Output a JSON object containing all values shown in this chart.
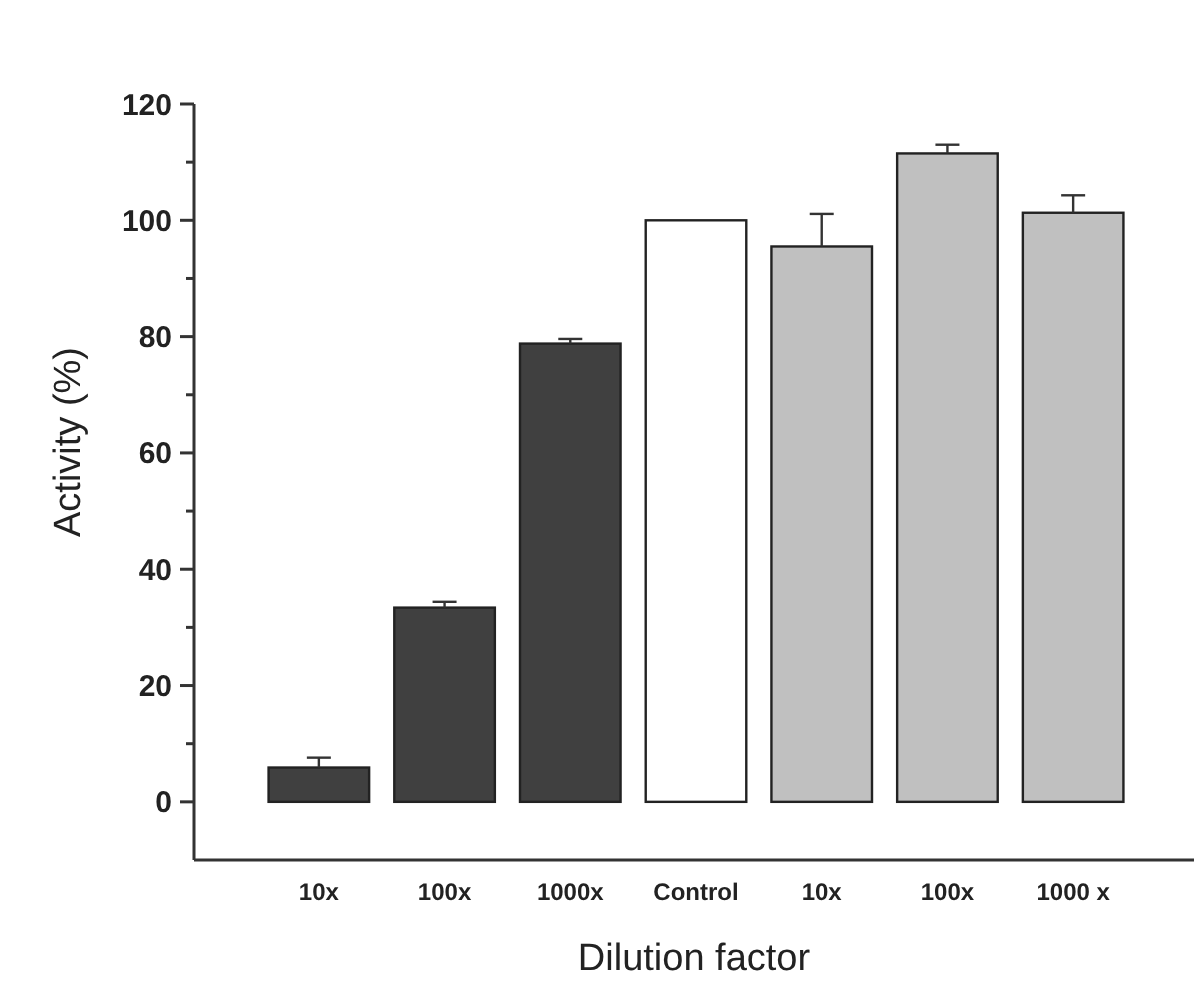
{
  "chart_data": {
    "type": "bar",
    "xlabel": "Dilution factor",
    "ylabel": "Activity (%)",
    "categories": [
      "10x",
      "100x",
      "1000x",
      "Control",
      "10x",
      "100x",
      "1000 x"
    ],
    "values": [
      5.9,
      33.4,
      78.8,
      100,
      95.5,
      111.5,
      101.3
    ],
    "colors": [
      "#404040",
      "#404040",
      "#404040",
      "#ffffff",
      "#c0c0c0",
      "#c0c0c0",
      "#c0c0c0"
    ],
    "errors": [
      [
        5.9,
        7.6
      ],
      [
        33.4,
        34.4
      ],
      [
        78.8,
        79.6
      ],
      null,
      [
        95.5,
        101.1
      ],
      [
        111.5,
        113.0
      ],
      [
        101.3,
        104.3
      ]
    ],
    "ylim": [
      -10,
      120
    ],
    "yticks": [
      0,
      {
        "value": 10,
        "label": null
      },
      20,
      {
        "value": 30,
        "label": null
      },
      40,
      {
        "value": 50,
        "label": null
      },
      60,
      {
        "value": 70,
        "label": null
      },
      80,
      {
        "value": 90,
        "label": null
      },
      100,
      {
        "value": 110,
        "label": null
      },
      120
    ],
    "grid": false
  }
}
